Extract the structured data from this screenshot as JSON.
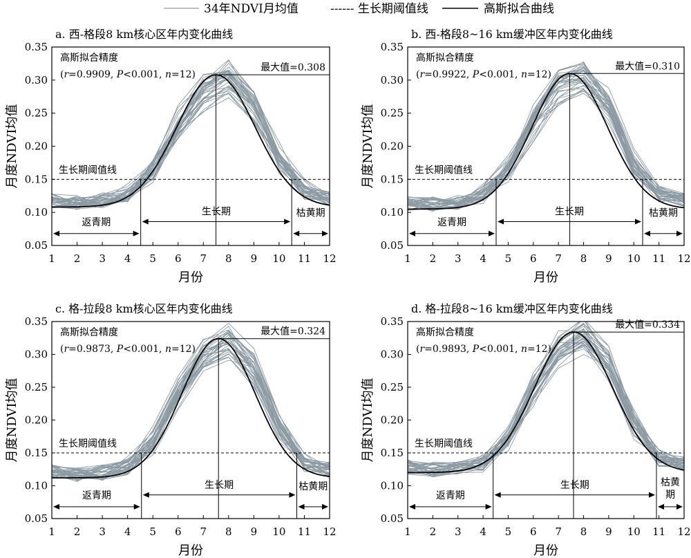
{
  "legend": {
    "monthly_mean": "34年NDVI月均值",
    "threshold": "------ 生长期阈值线",
    "gaussian": "高斯拟合曲线",
    "colors": {
      "monthly_mean": "#8c9aa3",
      "threshold": "#000000",
      "gaussian": "#000000"
    }
  },
  "chart_data": [
    {
      "id": "a",
      "type": "line",
      "title": "a. 西-格段8 km核心区年内变化曲线",
      "xlabel": "月份",
      "ylabel": "月度NDVI均值",
      "xlim": [
        1,
        12
      ],
      "ylim": [
        0.05,
        0.35
      ],
      "xticks": [
        "1",
        "2",
        "3",
        "4",
        "5",
        "6",
        "7",
        "8",
        "9",
        "10",
        "11",
        "12"
      ],
      "yticks": [
        "0.05",
        "0.10",
        "0.15",
        "0.20",
        "0.25",
        "0.30",
        "0.35"
      ],
      "threshold": 0.15,
      "threshold_label": "生长期阈值线",
      "fit_title": "高斯拟合精度",
      "fit_stats": {
        "r": "0.9909",
        "p": "0.001",
        "n": "12"
      },
      "max_label": "最大值=0.308",
      "max_value": 0.308,
      "peak_month": 7.5,
      "greenup": {
        "start": 1,
        "end": 4.52,
        "label": "返青期"
      },
      "growing": {
        "start": 4.52,
        "end": 10.5,
        "label": "生长期"
      },
      "senescence": {
        "start": 10.5,
        "end": 12,
        "label": "枯黄期"
      },
      "gaussian": {
        "baseline": 0.108,
        "amplitude": 0.2,
        "mu": 7.5,
        "sigma": 1.55
      },
      "monthly_mean": [
        0.118,
        0.115,
        0.117,
        0.126,
        0.163,
        0.232,
        0.285,
        0.306,
        0.262,
        0.176,
        0.129,
        0.12
      ]
    },
    {
      "id": "b",
      "type": "line",
      "title": "b. 西-格段8~16 km缓冲区年内变化曲线",
      "xlabel": "月份",
      "ylabel": "月度NDVI均值",
      "xlim": [
        1,
        12
      ],
      "ylim": [
        0.05,
        0.35
      ],
      "xticks": [
        "1",
        "2",
        "3",
        "4",
        "5",
        "6",
        "7",
        "8",
        "9",
        "10",
        "11",
        "12"
      ],
      "yticks": [
        "0.05",
        "0.10",
        "0.15",
        "0.20",
        "0.25",
        "0.30",
        "0.35"
      ],
      "threshold": 0.15,
      "threshold_label": "生长期阈值线",
      "fit_title": "高斯拟合精度",
      "fit_stats": {
        "r": "0.9922",
        "p": "0.001",
        "n": "12"
      },
      "max_label": "最大值=0.310",
      "max_value": 0.31,
      "peak_month": 7.45,
      "greenup": {
        "start": 1,
        "end": 4.52,
        "label": "返青期"
      },
      "growing": {
        "start": 4.52,
        "end": 10.35,
        "label": "生长期"
      },
      "senescence": {
        "start": 10.35,
        "end": 12,
        "label": "枯黄期"
      },
      "gaussian": {
        "baseline": 0.105,
        "amplitude": 0.205,
        "mu": 7.45,
        "sigma": 1.5
      },
      "monthly_mean": [
        0.114,
        0.112,
        0.114,
        0.124,
        0.162,
        0.236,
        0.29,
        0.306,
        0.262,
        0.17,
        0.125,
        0.117
      ]
    },
    {
      "id": "c",
      "type": "line",
      "title": "c. 格-拉段8 km核心区年内变化曲线",
      "xlabel": "月份",
      "ylabel": "月度NDVI均值",
      "xlim": [
        1,
        12
      ],
      "ylim": [
        0.05,
        0.35
      ],
      "xticks": [
        "1",
        "2",
        "3",
        "4",
        "5",
        "6",
        "7",
        "8",
        "9",
        "10",
        "11",
        "12"
      ],
      "yticks": [
        "0.05",
        "0.10",
        "0.15",
        "0.20",
        "0.25",
        "0.30",
        "0.35"
      ],
      "threshold": 0.15,
      "threshold_label": "生长期阈值线",
      "fit_title": "高斯拟合精度",
      "fit_stats": {
        "r": "0.9873",
        "p": "0.001",
        "n": "12"
      },
      "max_label": "最大值=0.324",
      "max_value": 0.324,
      "peak_month": 7.6,
      "greenup": {
        "start": 1,
        "end": 4.55,
        "label": "返青期"
      },
      "growing": {
        "start": 4.55,
        "end": 10.7,
        "label": "生长期"
      },
      "senescence": {
        "start": 10.7,
        "end": 12,
        "label": "枯黄期"
      },
      "gaussian": {
        "baseline": 0.112,
        "amplitude": 0.212,
        "mu": 7.6,
        "sigma": 1.45
      },
      "monthly_mean": [
        0.122,
        0.118,
        0.12,
        0.128,
        0.166,
        0.24,
        0.298,
        0.32,
        0.282,
        0.19,
        0.133,
        0.124
      ]
    },
    {
      "id": "d",
      "type": "line",
      "title": "d. 格-拉段8~16 km缓冲区年内变化曲线",
      "xlabel": "月份",
      "ylabel": "月度NDVI均值",
      "xlim": [
        1,
        12
      ],
      "ylim": [
        0.05,
        0.35
      ],
      "xticks": [
        "1",
        "2",
        "3",
        "4",
        "5",
        "6",
        "7",
        "8",
        "9",
        "10",
        "11",
        "12"
      ],
      "yticks": [
        "0.05",
        "0.10",
        "0.15",
        "0.20",
        "0.25",
        "0.30",
        "0.35"
      ],
      "threshold": 0.15,
      "threshold_label": "生长期阈值线",
      "fit_title": "高斯拟合精度",
      "fit_stats": {
        "r": "0.9893",
        "p": "0.001",
        "n": "12"
      },
      "max_label": "最大值=0.334",
      "max_value": 0.334,
      "peak_month": 7.6,
      "greenup": {
        "start": 1,
        "end": 4.4,
        "label": "返青期"
      },
      "growing": {
        "start": 4.4,
        "end": 10.9,
        "label": "生长期"
      },
      "senescence": {
        "start": 10.9,
        "end": 12,
        "label": "枯黄期"
      },
      "gaussian": {
        "baseline": 0.12,
        "amplitude": 0.214,
        "mu": 7.6,
        "sigma": 1.55
      },
      "monthly_mean": [
        0.128,
        0.124,
        0.126,
        0.132,
        0.17,
        0.246,
        0.305,
        0.33,
        0.288,
        0.196,
        0.14,
        0.132
      ]
    }
  ]
}
